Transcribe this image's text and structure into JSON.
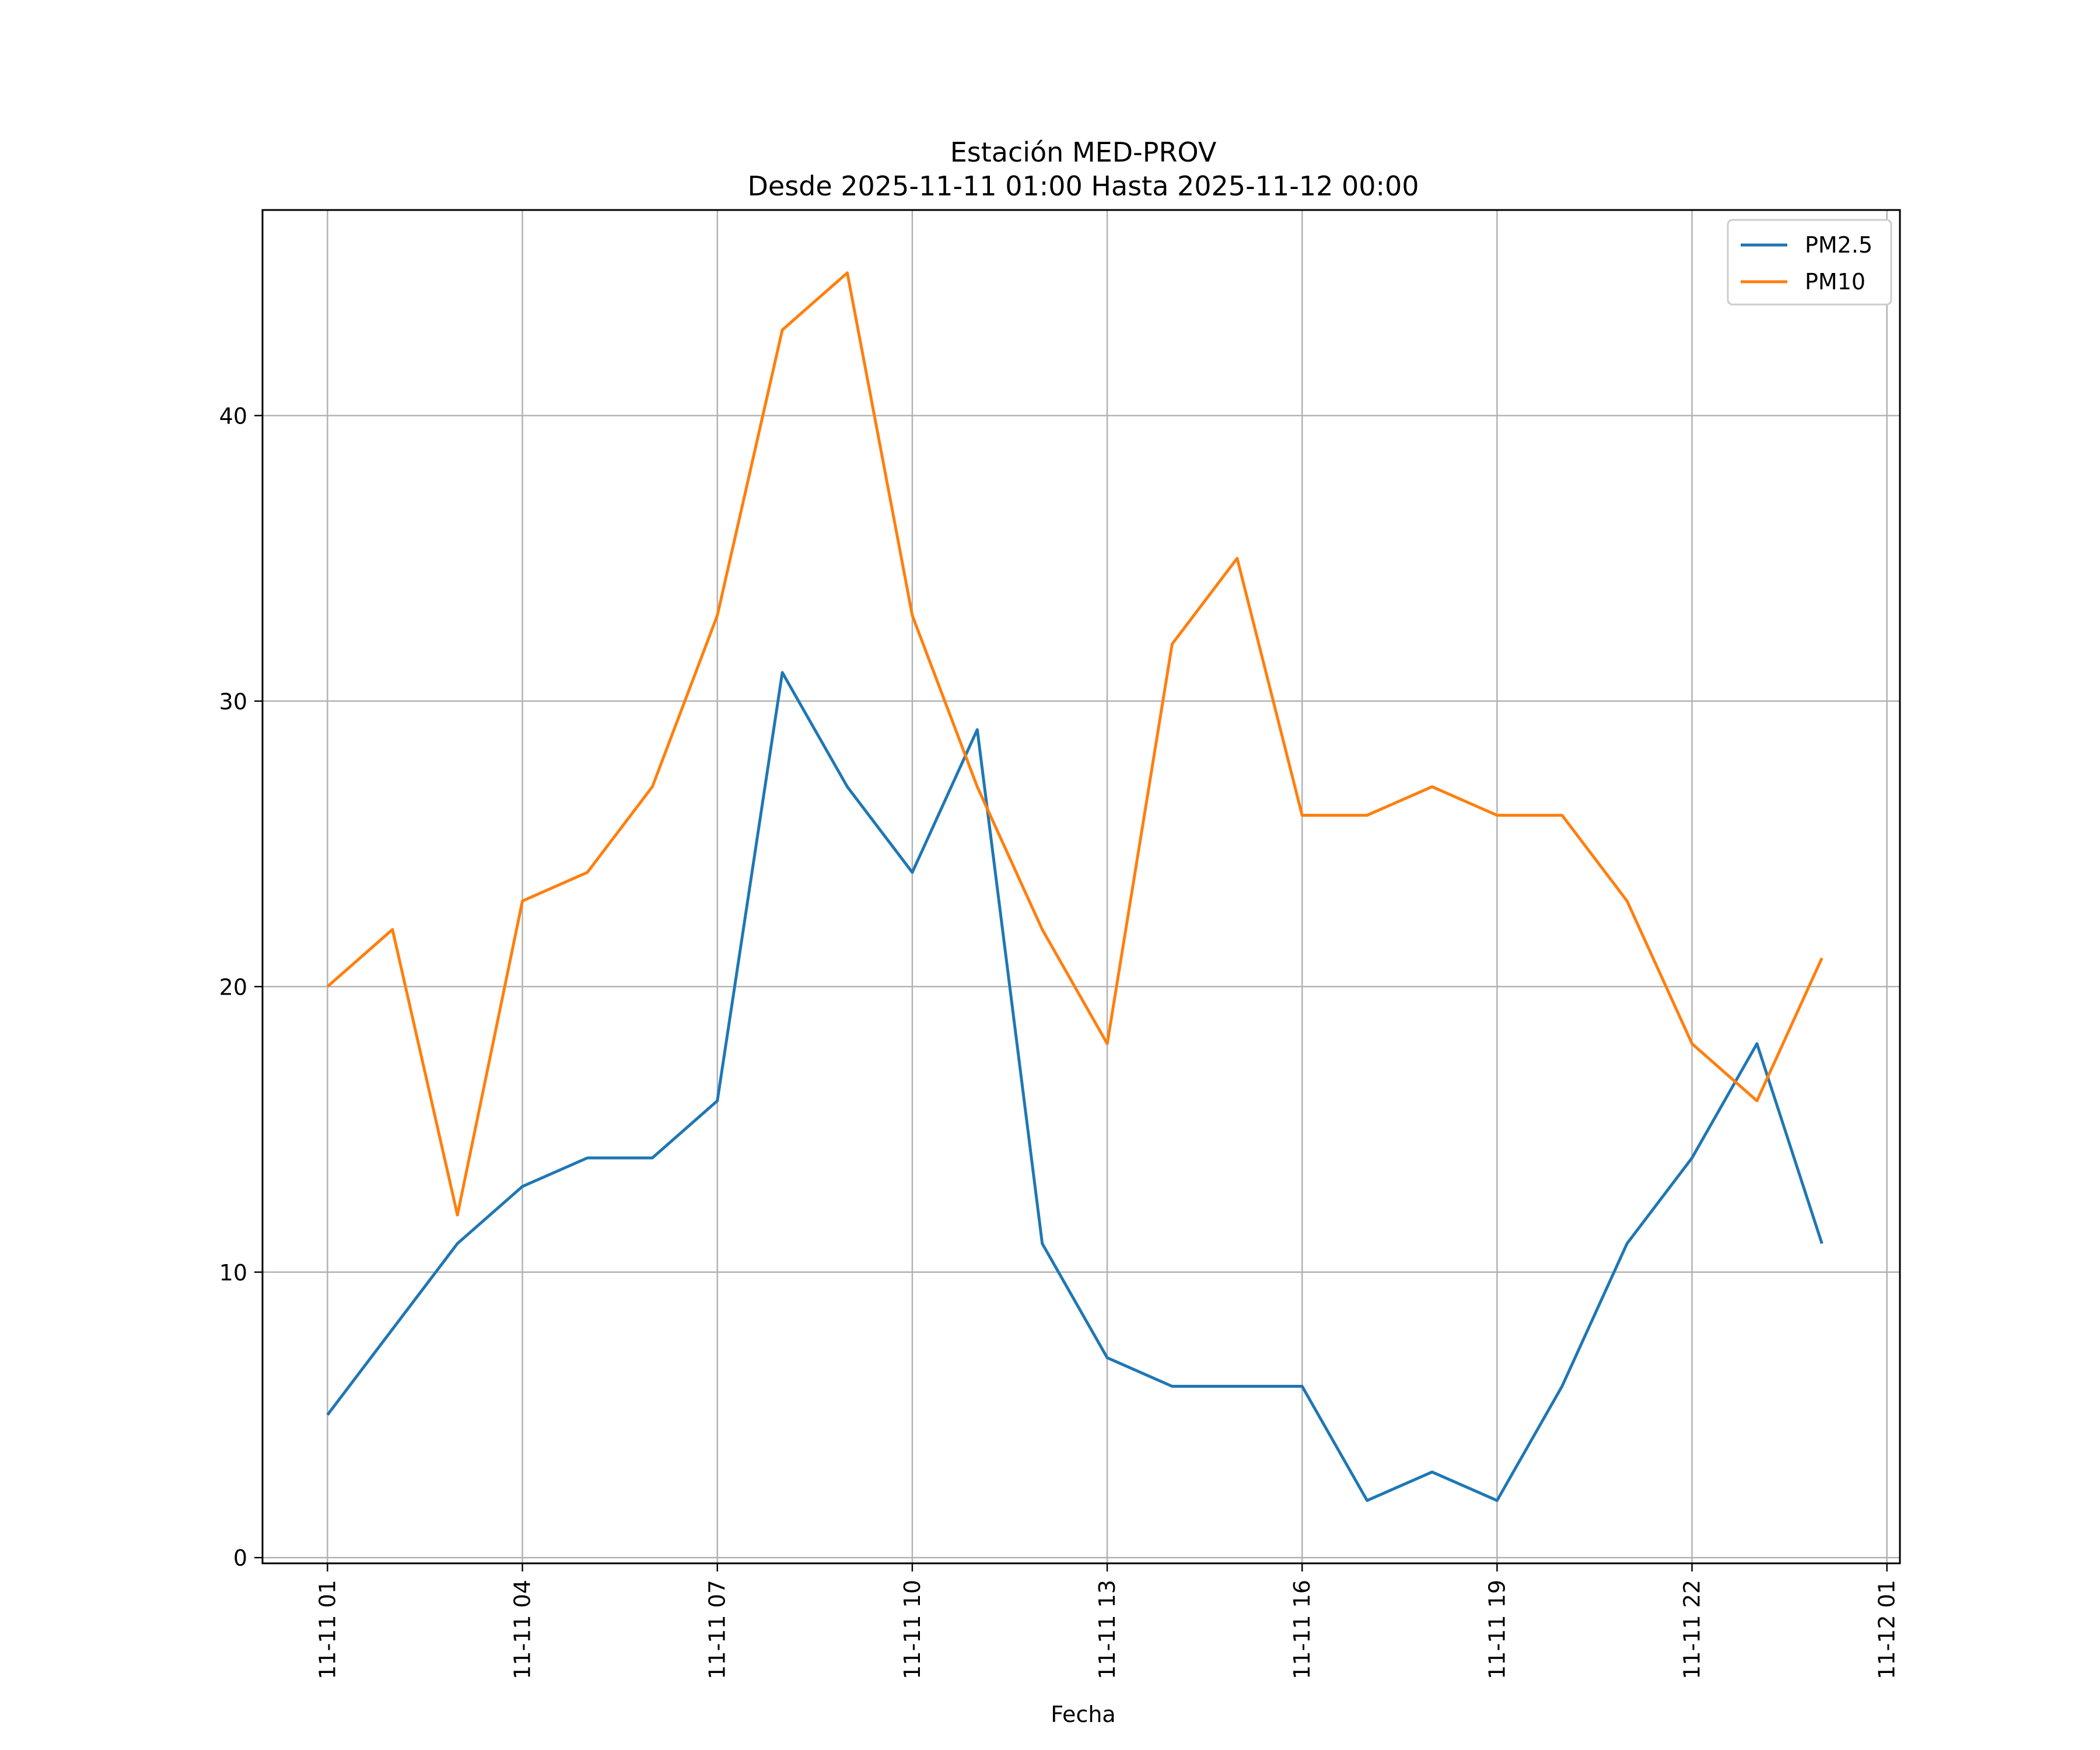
{
  "chart_data": {
    "type": "line",
    "title": "Estación MED-PROV",
    "subtitle": "Desde 2025-11-11 01:00 Hasta 2025-11-12 00:00",
    "xlabel": "Fecha",
    "ylabel": "",
    "x": [
      "2025-11-11 01:00",
      "2025-11-11 02:00",
      "2025-11-11 03:00",
      "2025-11-11 04:00",
      "2025-11-11 05:00",
      "2025-11-11 06:00",
      "2025-11-11 07:00",
      "2025-11-11 08:00",
      "2025-11-11 09:00",
      "2025-11-11 10:00",
      "2025-11-11 11:00",
      "2025-11-11 12:00",
      "2025-11-11 13:00",
      "2025-11-11 14:00",
      "2025-11-11 15:00",
      "2025-11-11 16:00",
      "2025-11-11 17:00",
      "2025-11-11 18:00",
      "2025-11-11 19:00",
      "2025-11-11 20:00",
      "2025-11-11 21:00",
      "2025-11-11 22:00",
      "2025-11-11 23:00",
      "2025-11-12 00:00"
    ],
    "xlim": [
      "2025-11-11 00:00",
      "2025-11-12 01:12"
    ],
    "x_ticks": [
      {
        "at": "2025-11-11 01:00",
        "label": "11-11 01"
      },
      {
        "at": "2025-11-11 04:00",
        "label": "11-11 04"
      },
      {
        "at": "2025-11-11 07:00",
        "label": "11-11 07"
      },
      {
        "at": "2025-11-11 10:00",
        "label": "11-11 10"
      },
      {
        "at": "2025-11-11 13:00",
        "label": "11-11 13"
      },
      {
        "at": "2025-11-11 16:00",
        "label": "11-11 16"
      },
      {
        "at": "2025-11-11 19:00",
        "label": "11-11 19"
      },
      {
        "at": "2025-11-11 22:00",
        "label": "11-11 22"
      },
      {
        "at": "2025-11-12 01:00",
        "label": "11-12 01"
      }
    ],
    "y_ticks": [
      0,
      10,
      20,
      30,
      40
    ],
    "ylim": [
      -0.2,
      47.2
    ],
    "grid": true,
    "legend": "top-right",
    "series": [
      {
        "name": "PM2.5",
        "color": "#1f77b4",
        "values": [
          5,
          8,
          11,
          13,
          14,
          14,
          16,
          31,
          27,
          24,
          29,
          11,
          7,
          6,
          6,
          6,
          2,
          3,
          2,
          6,
          11,
          14,
          18,
          11
        ]
      },
      {
        "name": "PM10",
        "color": "#ff7f0e",
        "values": [
          20,
          22,
          12,
          23,
          24,
          27,
          33,
          43,
          45,
          33,
          27,
          22,
          18,
          32,
          35,
          26,
          26,
          27,
          26,
          26,
          23,
          18,
          16,
          21
        ]
      }
    ]
  }
}
